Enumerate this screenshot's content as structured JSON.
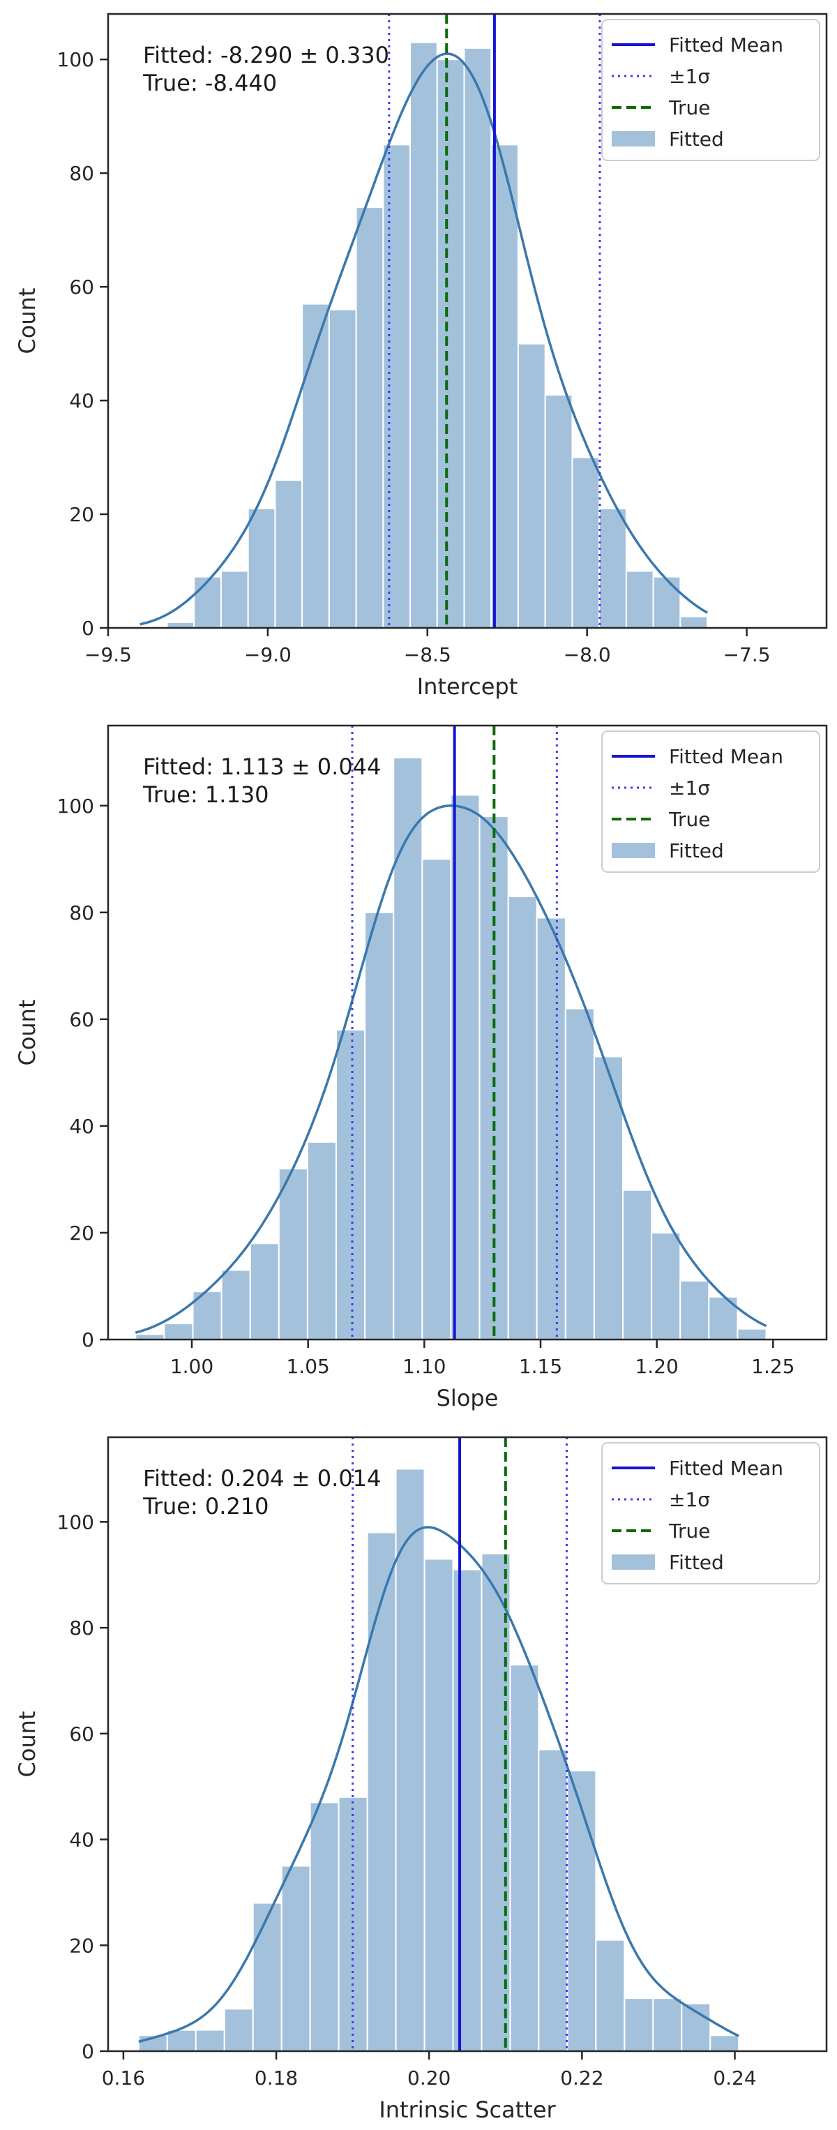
{
  "colors": {
    "bar_fill": "#a4c1dc",
    "bar_edge": "#ffffff",
    "kde": "#3a78ad",
    "mean_line": "#1414d6",
    "sigma_line": "#3b3bf0",
    "true_line": "#0b6b0b",
    "axis": "#262626"
  },
  "legend": {
    "mean_label": "Fitted Mean",
    "sigma_label": "±1σ",
    "true_label": "True",
    "hist_label": "Fitted"
  },
  "chart_data": [
    {
      "type": "histogram",
      "xlabel": "Intercept",
      "ylabel": "Count",
      "xlim": [
        -9.5,
        -7.25
      ],
      "ylim": [
        0,
        108
      ],
      "xticks": [
        -9.5,
        -9.0,
        -8.5,
        -8.0,
        -7.5
      ],
      "xtick_labels": [
        "−9.5",
        "−9.0",
        "−8.5",
        "−8.0",
        "−7.5"
      ],
      "yticks": [
        0,
        20,
        40,
        60,
        80,
        100
      ],
      "ytick_labels": [
        "0",
        "20",
        "40",
        "60",
        "80",
        "100"
      ],
      "bin_start": -9.4,
      "bin_width": 0.0846,
      "counts": [
        0,
        1,
        9,
        10,
        21,
        26,
        57,
        56,
        74,
        85,
        103,
        100,
        102,
        85,
        50,
        41,
        30,
        21,
        10,
        9,
        2
      ],
      "kde_peak": 101,
      "fitted_mean": -8.29,
      "sigma": 0.33,
      "true_value": -8.44,
      "annotation_line1": "Fitted: -8.290 ± 0.330",
      "annotation_line2": "True: -8.440"
    },
    {
      "type": "histogram",
      "xlabel": "Slope",
      "ylabel": "Count",
      "xlim": [
        0.964,
        1.273
      ],
      "ylim": [
        0,
        115
      ],
      "xticks": [
        1.0,
        1.05,
        1.1,
        1.15,
        1.2,
        1.25
      ],
      "xtick_labels": [
        "1.00",
        "1.05",
        "1.10",
        "1.15",
        "1.20",
        "1.25"
      ],
      "yticks": [
        0,
        20,
        40,
        60,
        80,
        100
      ],
      "ytick_labels": [
        "0",
        "20",
        "40",
        "60",
        "80",
        "100"
      ],
      "bin_start": 0.9758,
      "bin_width": 0.01233,
      "counts": [
        1,
        3,
        9,
        13,
        18,
        32,
        37,
        58,
        80,
        109,
        90,
        102,
        98,
        83,
        79,
        62,
        53,
        28,
        20,
        11,
        8,
        2
      ],
      "kde_peak": 100,
      "fitted_mean": 1.113,
      "sigma": 0.044,
      "true_value": 1.13,
      "annotation_line1": "Fitted: 1.113 ± 0.044",
      "annotation_line2": "True: 1.130"
    },
    {
      "type": "histogram",
      "xlabel": "Intrinsic Scatter",
      "ylabel": "Count",
      "xlim": [
        0.158,
        0.252
      ],
      "ylim": [
        0,
        116
      ],
      "xticks": [
        0.16,
        0.18,
        0.2,
        0.22,
        0.24
      ],
      "xtick_labels": [
        "0.16",
        "0.18",
        "0.20",
        "0.22",
        "0.24"
      ],
      "yticks": [
        0,
        20,
        40,
        60,
        80,
        100
      ],
      "ytick_labels": [
        "0",
        "20",
        "40",
        "60",
        "80",
        "100"
      ],
      "bin_start": 0.162,
      "bin_width": 0.003739,
      "counts": [
        3,
        4,
        4,
        8,
        28,
        35,
        47,
        48,
        98,
        110,
        93,
        91,
        94,
        73,
        57,
        53,
        21,
        10,
        10,
        9,
        3
      ],
      "kde_peak": 99,
      "fitted_mean": 0.204,
      "sigma": 0.014,
      "true_value": 0.21,
      "annotation_line1": "Fitted: 0.204 ± 0.014",
      "annotation_line2": "True: 0.210"
    }
  ]
}
